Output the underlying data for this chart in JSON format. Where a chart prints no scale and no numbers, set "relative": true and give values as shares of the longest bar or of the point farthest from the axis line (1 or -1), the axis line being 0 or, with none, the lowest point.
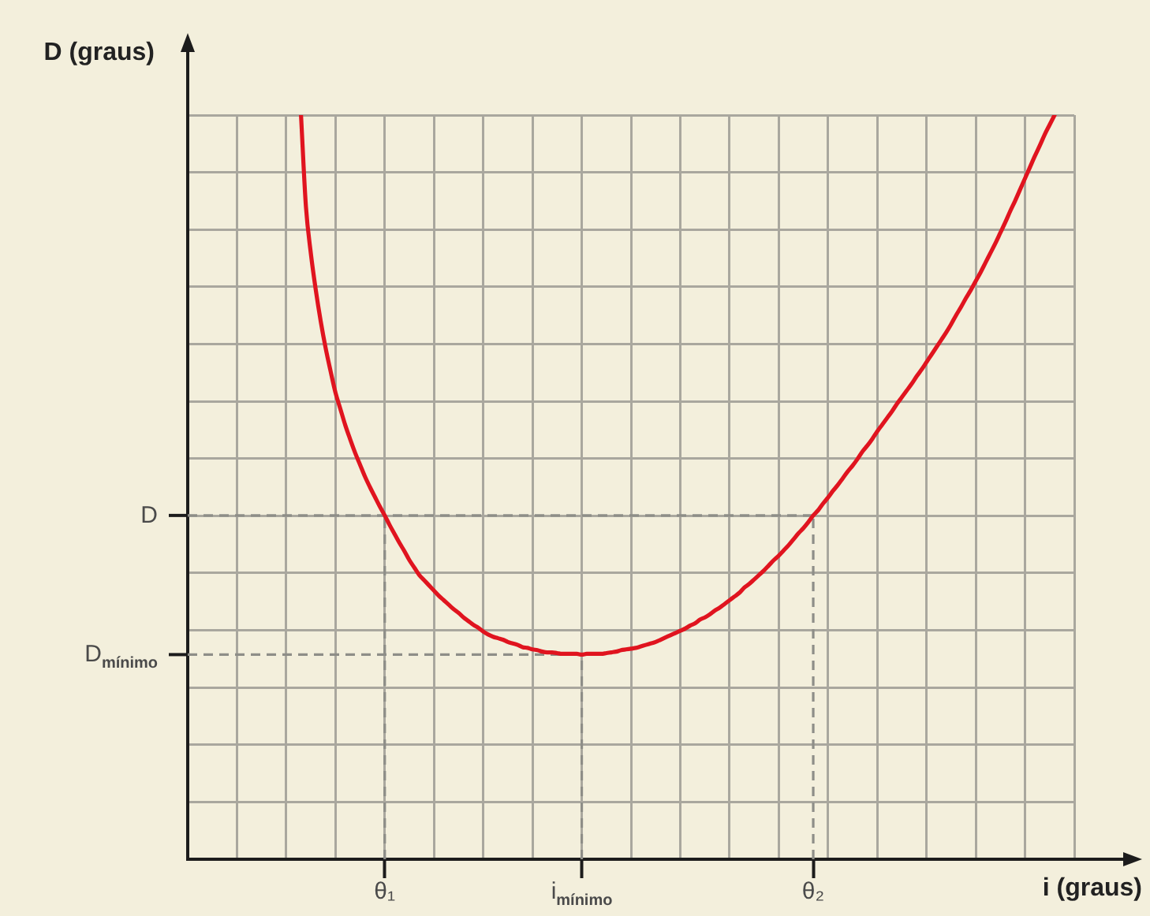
{
  "chart_data": {
    "type": "line",
    "relative": true,
    "xlabel": "i (graus)",
    "ylabel": "D (graus)",
    "categories": [
      null,
      null,
      null,
      null,
      null,
      null,
      null,
      null,
      null,
      null,
      null,
      null,
      null,
      null,
      null,
      null,
      null,
      null,
      null,
      null,
      null,
      null,
      null,
      null,
      null,
      null,
      null,
      null,
      null,
      null,
      null,
      null,
      null,
      null,
      null,
      null,
      null,
      null,
      null,
      null,
      "θ₁",
      null,
      null,
      null,
      null,
      null,
      null,
      null,
      null,
      null,
      null,
      null,
      null,
      null,
      null,
      null,
      null,
      null,
      null,
      null,
      null,
      null,
      null,
      null,
      null,
      null,
      null,
      null,
      null,
      null,
      null,
      null,
      null,
      null,
      null,
      null,
      null,
      null,
      null,
      null,
      "i$_{mínimo}$",
      null,
      null,
      null,
      null,
      null,
      null,
      null,
      null,
      null,
      null,
      null,
      null,
      null,
      null,
      null,
      null,
      null,
      null,
      null,
      null,
      null,
      null,
      null,
      null,
      null,
      null,
      null,
      null,
      null,
      null,
      null,
      null,
      null,
      null,
      null,
      null,
      null,
      null,
      null,
      null,
      null,
      null,
      null,
      null,
      null,
      null,
      "θ₂",
      null,
      null,
      null,
      null,
      null,
      null,
      null,
      null,
      null,
      null,
      null,
      null,
      null,
      null,
      null,
      null,
      null,
      null,
      null,
      null,
      null,
      null,
      null,
      null,
      null,
      null,
      null,
      null,
      null,
      null,
      null,
      null,
      null,
      null,
      null,
      null,
      null,
      null,
      null,
      null,
      null,
      null,
      null,
      null,
      null,
      null,
      null,
      null,
      null,
      null,
      null,
      null,
      null
    ],
    "series": [
      {
        "color": "#e0141f",
        "values": [
          null,
          null,
          null,
          null,
          null,
          null,
          null,
          null,
          null,
          null,
          null,
          null,
          null,
          null,
          null,
          null,
          null,
          null,
          null,
          null,
          null,
          null,
          null,
          1,
          0.877,
          0.814,
          0.765,
          0.723,
          0.687,
          0.656,
          0.627,
          0.605,
          0.583,
          0.564,
          0.546,
          0.53,
          0.514,
          0.5,
          0.487,
          0.474,
          0.462,
          0.449,
          0.437,
          0.425,
          0.414,
          0.402,
          0.392,
          0.382,
          0.375,
          0.368,
          0.361,
          0.354,
          0.348,
          0.342,
          0.336,
          0.331,
          0.325,
          0.32,
          0.315,
          0.311,
          0.306,
          0.302,
          0.299,
          0.297,
          0.295,
          0.292,
          0.29,
          0.288,
          0.285,
          0.284,
          0.282,
          0.281,
          0.279,
          0.278,
          0.278,
          0.277,
          0.276,
          0.276,
          0.276,
          0.276,
          0.275,
          0.276,
          0.276,
          0.276,
          0.276,
          0.277,
          0.278,
          0.279,
          0.281,
          0.282,
          0.283,
          0.284,
          0.286,
          0.288,
          0.29,
          0.292,
          0.295,
          0.298,
          0.301,
          0.304,
          0.307,
          0.31,
          0.314,
          0.317,
          0.322,
          0.325,
          0.329,
          0.334,
          0.338,
          0.343,
          0.348,
          0.353,
          0.358,
          0.365,
          0.37,
          0.376,
          0.382,
          0.388,
          0.395,
          0.402,
          0.408,
          0.415,
          0.422,
          0.43,
          0.438,
          0.445,
          0.453,
          0.462,
          0.469,
          0.478,
          0.486,
          0.495,
          0.503,
          0.512,
          0.521,
          0.529,
          0.538,
          0.548,
          0.556,
          0.565,
          0.575,
          0.584,
          0.593,
          0.602,
          0.612,
          0.621,
          0.63,
          0.639,
          0.649,
          0.658,
          0.668,
          0.678,
          0.688,
          0.698,
          0.708,
          0.719,
          0.731,
          0.742,
          0.754,
          0.765,
          0.777,
          0.789,
          0.802,
          0.815,
          0.828,
          0.842,
          0.856,
          0.871,
          0.885,
          0.9,
          0.915,
          0.93,
          0.945,
          0.959,
          0.974,
          0.987,
          1,
          null,
          null,
          null,
          null
        ]
      }
    ],
    "ref_lines": [
      {
        "axis": "y",
        "value": 0.462,
        "label": "D",
        "color": "#8e8e88",
        "line_style": "dashed"
      },
      {
        "axis": "y",
        "value": 0.275,
        "label": "D$_{mínimo}$",
        "color": "#8e8e88",
        "line_style": "dashed"
      },
      {
        "axis": "x",
        "value": "θ₁",
        "color": "#8e8e88",
        "line_style": "dashed"
      },
      {
        "axis": "x",
        "value": "i$_{mínimo}$",
        "color": "#8e8e88",
        "line_style": "dashed"
      },
      {
        "axis": "x",
        "value": "θ₂",
        "color": "#8e8e88",
        "line_style": "dashed"
      }
    ],
    "grid": true
  }
}
